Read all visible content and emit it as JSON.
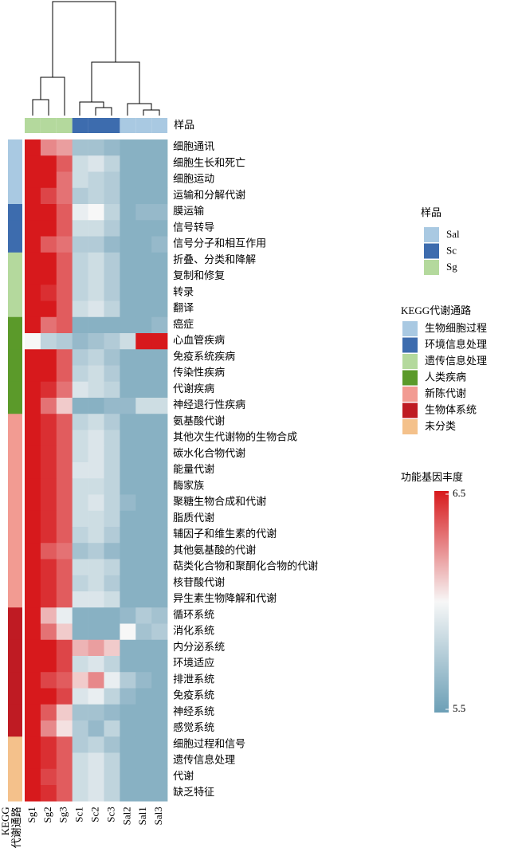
{
  "chart_data": {
    "type": "heatmap",
    "columns": [
      "Sg1",
      "Sg2",
      "Sg3",
      "Sc1",
      "Sc2",
      "Sc3",
      "Sal2",
      "Sal1",
      "Sal3"
    ],
    "column_groups": [
      "Sg",
      "Sg",
      "Sg",
      "Sc",
      "Sc",
      "Sc",
      "Sal",
      "Sal",
      "Sal"
    ],
    "column_annotation_label": "样品",
    "rows": [
      "细胞通讯",
      "细胞生长和死亡",
      "细胞运动",
      "运输和分解代谢",
      "膜运输",
      "信号转导",
      "信号分子和相互作用",
      "折叠、分类和降解",
      "复制和修复",
      "转录",
      "翻译",
      "癌症",
      "心血管疾病",
      "免疫系统疾病",
      "传染性疾病",
      "代谢疾病",
      "神经退行性疾病",
      "氨基酸代谢",
      "其他次生代谢物的生物合成",
      "碳水化合物代谢",
      "能量代谢",
      "酶家族",
      "聚糖生物合成和代谢",
      "脂质代谢",
      "辅因子和维生素的代谢",
      "其他氨基酸的代谢",
      "萜类化合物和聚酮化合物的代谢",
      "核苷酸代谢",
      "异生素生物降解和代谢",
      "循环系统",
      "消化系统",
      "内分泌系统",
      "环境适应",
      "排泄系统",
      "免疫系统",
      "神经系统",
      "感觉系统",
      "细胞过程和信号",
      "遗传信息处理",
      "代谢",
      "缺乏特征"
    ],
    "row_groups": [
      "生物细胞过程",
      "生物细胞过程",
      "生物细胞过程",
      "生物细胞过程",
      "环境信息处理",
      "环境信息处理",
      "环境信息处理",
      "遗传信息处理",
      "遗传信息处理",
      "遗传信息处理",
      "遗传信息处理",
      "人类疾病",
      "人类疾病",
      "人类疾病",
      "人类疾病",
      "人类疾病",
      "人类疾病",
      "新陈代谢",
      "新陈代谢",
      "新陈代谢",
      "新陈代谢",
      "新陈代谢",
      "新陈代谢",
      "新陈代谢",
      "新陈代谢",
      "新陈代谢",
      "新陈代谢",
      "新陈代谢",
      "新陈代谢",
      "生物体系统",
      "生物体系统",
      "生物体系统",
      "生物体系统",
      "生物体系统",
      "生物体系统",
      "生物体系统",
      "生物体系统",
      "未分类",
      "未分类",
      "未分类",
      "未分类"
    ],
    "row_annotation_label": [
      "KEGG",
      "代谢通路"
    ],
    "values": [
      [
        6.5,
        6.25,
        6.2,
        5.7,
        5.7,
        5.65,
        5.6,
        5.6,
        5.6
      ],
      [
        6.5,
        6.5,
        6.35,
        5.85,
        5.9,
        5.8,
        5.6,
        5.6,
        5.6
      ],
      [
        6.5,
        6.5,
        6.3,
        5.85,
        5.8,
        5.75,
        5.6,
        5.6,
        5.6
      ],
      [
        6.5,
        6.4,
        6.3,
        5.75,
        5.8,
        5.75,
        5.6,
        5.6,
        5.6
      ],
      [
        6.5,
        6.5,
        6.35,
        5.95,
        6.0,
        5.8,
        5.6,
        5.65,
        5.65
      ],
      [
        6.5,
        6.5,
        6.35,
        5.85,
        5.85,
        5.75,
        5.6,
        5.6,
        5.6
      ],
      [
        6.5,
        6.35,
        6.3,
        5.75,
        5.75,
        5.65,
        5.6,
        5.6,
        5.65
      ],
      [
        6.5,
        6.5,
        6.35,
        5.8,
        5.85,
        5.75,
        5.6,
        5.6,
        5.6
      ],
      [
        6.5,
        6.5,
        6.35,
        5.8,
        5.85,
        5.75,
        5.6,
        5.6,
        5.6
      ],
      [
        6.5,
        6.45,
        6.35,
        5.8,
        5.85,
        5.75,
        5.6,
        5.6,
        5.6
      ],
      [
        6.5,
        6.5,
        6.35,
        5.85,
        5.9,
        5.8,
        5.6,
        5.6,
        5.6
      ],
      [
        6.5,
        6.3,
        6.35,
        5.6,
        5.6,
        5.6,
        5.6,
        5.6,
        5.65
      ],
      [
        6.0,
        5.8,
        5.75,
        5.65,
        5.7,
        5.75,
        5.85,
        6.5,
        6.5
      ],
      [
        6.5,
        6.5,
        6.35,
        5.75,
        5.8,
        5.7,
        5.6,
        5.6,
        5.6
      ],
      [
        6.5,
        6.5,
        6.35,
        5.8,
        5.85,
        5.75,
        5.6,
        5.6,
        5.6
      ],
      [
        6.5,
        6.45,
        6.3,
        5.9,
        5.85,
        5.8,
        5.6,
        5.6,
        5.6
      ],
      [
        6.5,
        6.3,
        6.1,
        5.6,
        5.6,
        5.65,
        5.65,
        5.85,
        5.85
      ],
      [
        6.5,
        6.45,
        6.35,
        5.8,
        5.85,
        5.75,
        5.6,
        5.6,
        5.6
      ],
      [
        6.5,
        6.45,
        6.35,
        5.85,
        5.9,
        5.8,
        5.6,
        5.6,
        5.6
      ],
      [
        6.5,
        6.45,
        6.35,
        5.85,
        5.9,
        5.8,
        5.6,
        5.6,
        5.6
      ],
      [
        6.5,
        6.45,
        6.35,
        5.9,
        5.9,
        5.8,
        5.6,
        5.6,
        5.6
      ],
      [
        6.5,
        6.45,
        6.35,
        5.85,
        5.85,
        5.8,
        5.6,
        5.6,
        5.6
      ],
      [
        6.5,
        6.45,
        6.35,
        5.85,
        5.9,
        5.8,
        5.65,
        5.6,
        5.6
      ],
      [
        6.5,
        6.45,
        6.35,
        5.85,
        5.85,
        5.8,
        5.6,
        5.6,
        5.6
      ],
      [
        6.5,
        6.45,
        6.35,
        5.8,
        5.85,
        5.75,
        5.6,
        5.6,
        5.6
      ],
      [
        6.5,
        6.35,
        6.3,
        5.7,
        5.75,
        5.65,
        5.6,
        5.6,
        5.6
      ],
      [
        6.5,
        6.45,
        6.35,
        5.85,
        5.85,
        5.8,
        5.6,
        5.6,
        5.6
      ],
      [
        6.5,
        6.45,
        6.35,
        5.8,
        5.85,
        5.75,
        5.6,
        5.6,
        5.6
      ],
      [
        6.5,
        6.45,
        6.35,
        5.9,
        5.9,
        5.85,
        5.6,
        5.6,
        5.6
      ],
      [
        6.5,
        6.15,
        5.95,
        5.6,
        5.6,
        5.6,
        5.65,
        5.75,
        5.7
      ],
      [
        6.5,
        6.3,
        6.1,
        5.6,
        5.6,
        5.6,
        6.0,
        5.7,
        5.75
      ],
      [
        6.5,
        6.5,
        6.4,
        6.15,
        6.2,
        6.1,
        5.6,
        5.6,
        5.6
      ],
      [
        6.5,
        6.5,
        6.4,
        5.85,
        5.9,
        5.8,
        5.6,
        5.6,
        5.6
      ],
      [
        6.5,
        6.4,
        6.35,
        6.1,
        6.25,
        5.95,
        5.75,
        5.65,
        5.6
      ],
      [
        6.5,
        6.5,
        6.4,
        5.9,
        5.95,
        5.8,
        5.65,
        5.6,
        5.6
      ],
      [
        6.5,
        6.35,
        6.1,
        5.7,
        5.7,
        5.65,
        5.6,
        5.6,
        5.6
      ],
      [
        6.5,
        6.25,
        6.05,
        5.75,
        5.65,
        5.8,
        5.6,
        5.6,
        5.6
      ],
      [
        6.5,
        6.45,
        6.35,
        5.75,
        5.8,
        5.7,
        5.6,
        5.6,
        5.6
      ],
      [
        6.5,
        6.45,
        6.35,
        5.85,
        5.9,
        5.8,
        5.6,
        5.6,
        5.6
      ],
      [
        6.5,
        6.4,
        6.35,
        5.85,
        5.9,
        5.8,
        5.6,
        5.6,
        5.6
      ],
      [
        6.5,
        6.45,
        6.35,
        5.85,
        5.9,
        5.8,
        5.6,
        5.6,
        5.6
      ]
    ],
    "zlim": [
      5.5,
      6.5
    ],
    "zticks": [
      5.5,
      6.5
    ],
    "colorscale": [
      "#6c9fb6",
      "#f7f7f7",
      "#d7191c"
    ],
    "colorbar_title": "功能基因丰度",
    "sample_legend": {
      "title": "样品",
      "items": [
        {
          "name": "Sal",
          "color": "#a9c9e2"
        },
        {
          "name": "Sc",
          "color": "#3d6cae"
        },
        {
          "name": "Sg",
          "color": "#b4d99d"
        }
      ]
    },
    "kegg_legend": {
      "title": "KEGG代谢通路",
      "items": [
        {
          "name": "生物细胞过程",
          "color": "#a9c9e2"
        },
        {
          "name": "环境信息处理",
          "color": "#3d6cae"
        },
        {
          "name": "遗传信息处理",
          "color": "#b4d99d"
        },
        {
          "name": "人类疾病",
          "color": "#5b9a2a"
        },
        {
          "name": "新陈代谢",
          "color": "#f29b92"
        },
        {
          "name": "生物体系统",
          "color": "#bf1b23"
        },
        {
          "name": "未分类",
          "color": "#f4c18b"
        }
      ]
    }
  }
}
